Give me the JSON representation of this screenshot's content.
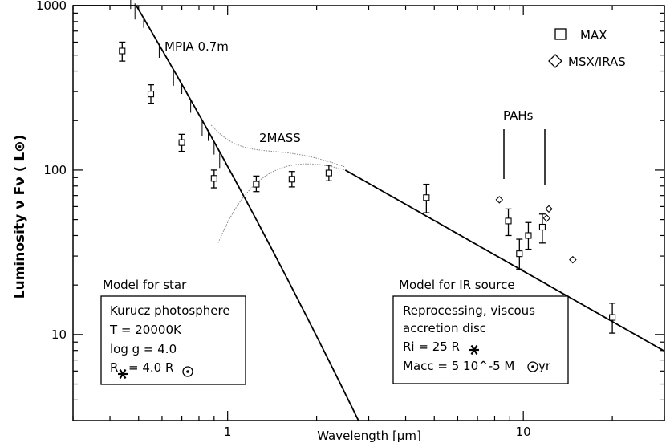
{
  "chart_data": {
    "type": "scatter",
    "title": "",
    "xlabel": "Wavelength [µm]",
    "ylabel": "Luminosity ν Fν ( L⊙)",
    "xscale": "log",
    "yscale": "log",
    "xlim": [
      0.3,
      30
    ],
    "ylim": [
      3,
      1000
    ],
    "x_ticks": [
      {
        "value": 1,
        "label": "1"
      },
      {
        "value": 10,
        "label": "10"
      }
    ],
    "y_ticks": [
      {
        "value": 10,
        "label": "10"
      },
      {
        "value": 100,
        "label": "100"
      },
      {
        "value": 1000,
        "label": "1000"
      }
    ],
    "legend": {
      "placement": "top-right",
      "entries": [
        {
          "label": "MAX",
          "marker": "square"
        },
        {
          "label": "MSX/IRAS",
          "marker": "diamond"
        }
      ]
    },
    "series": [
      {
        "name": "MAX",
        "marker": "square",
        "points": [
          {
            "x": 0.44,
            "y": 530,
            "ylo": 460,
            "yhi": 600
          },
          {
            "x": 0.55,
            "y": 290,
            "ylo": 255,
            "yhi": 330
          },
          {
            "x": 0.7,
            "y": 147,
            "ylo": 130,
            "yhi": 165
          },
          {
            "x": 0.9,
            "y": 89,
            "ylo": 78,
            "yhi": 100
          },
          {
            "x": 1.25,
            "y": 82,
            "ylo": 74,
            "yhi": 92
          },
          {
            "x": 1.65,
            "y": 88,
            "ylo": 79,
            "yhi": 98
          },
          {
            "x": 2.2,
            "y": 96,
            "ylo": 86,
            "yhi": 107
          },
          {
            "x": 4.7,
            "y": 68,
            "ylo": 55,
            "yhi": 82
          },
          {
            "x": 8.9,
            "y": 49,
            "ylo": 40,
            "yhi": 58
          },
          {
            "x": 9.7,
            "y": 31,
            "ylo": 25,
            "yhi": 38
          },
          {
            "x": 10.4,
            "y": 40,
            "ylo": 33,
            "yhi": 48
          },
          {
            "x": 11.6,
            "y": 45,
            "ylo": 36,
            "yhi": 54
          },
          {
            "x": 20,
            "y": 12.7,
            "ylo": 10.2,
            "yhi": 15.5
          }
        ]
      },
      {
        "name": "MSX/IRAS",
        "marker": "diamond",
        "points": [
          {
            "x": 8.3,
            "y": 66
          },
          {
            "x": 12.0,
            "y": 51
          },
          {
            "x": 12.2,
            "y": 58
          },
          {
            "x": 14.7,
            "y": 28.5
          }
        ]
      }
    ],
    "annotations": [
      {
        "text": "MPIA 0.7m"
      },
      {
        "text": "2MASS"
      },
      {
        "text": "PAHs"
      },
      {
        "text": "Model for star"
      },
      {
        "text": "Model for IR source"
      }
    ],
    "model_boxes": {
      "star": {
        "line1": "Kurucz photosphere",
        "line2": "T = 20000K",
        "line3": "log g = 4.0",
        "line4_prefix": "R",
        "line4_suffix": " = 4.0 R"
      },
      "ir": {
        "line1": "Reprocessing, viscous",
        "line2": "accretion disc",
        "line3_prefix": "Ri = 25 R",
        "line4_prefix": "Macc = 5 10^-5 M",
        "line4_suffix": " yr"
      }
    }
  }
}
